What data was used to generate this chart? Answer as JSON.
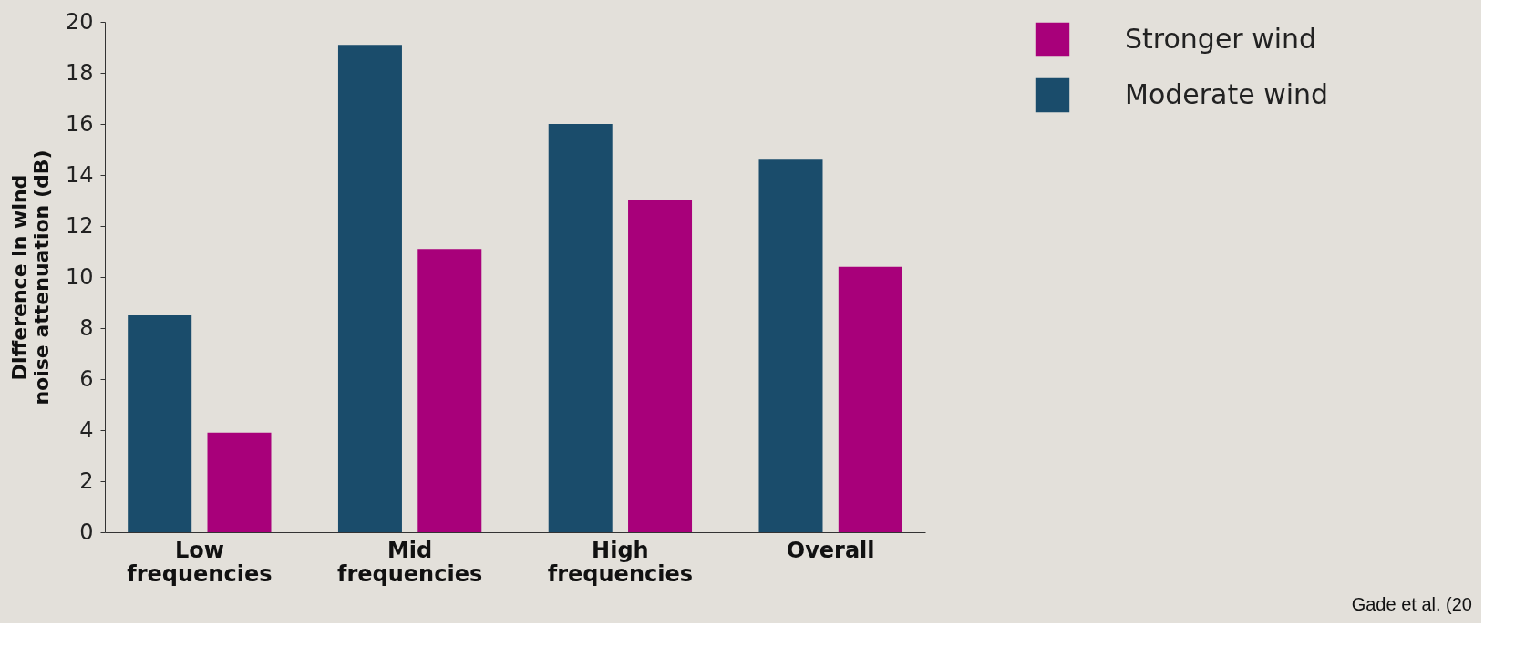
{
  "chart_data": {
    "type": "bar",
    "ylabel": "Difference in wind noise attenuation (dB)",
    "categories": [
      "Low frequencies",
      "Mid frequencies",
      "High frequencies",
      "Overall"
    ],
    "series": [
      {
        "name": "Moderate wind",
        "color": "#1a4c6b",
        "values": [
          8.5,
          19.1,
          16.0,
          14.6
        ]
      },
      {
        "name": "Stronger wind",
        "color": "#a8007a",
        "values": [
          3.9,
          11.1,
          13.0,
          10.4
        ]
      }
    ],
    "ylim": [
      0,
      20
    ],
    "yticks": [
      0,
      2,
      4,
      6,
      8,
      10,
      12,
      14,
      16,
      18,
      20
    ],
    "grid": false,
    "legend": "right",
    "annotations": [
      "Gade et al. (20"
    ]
  }
}
